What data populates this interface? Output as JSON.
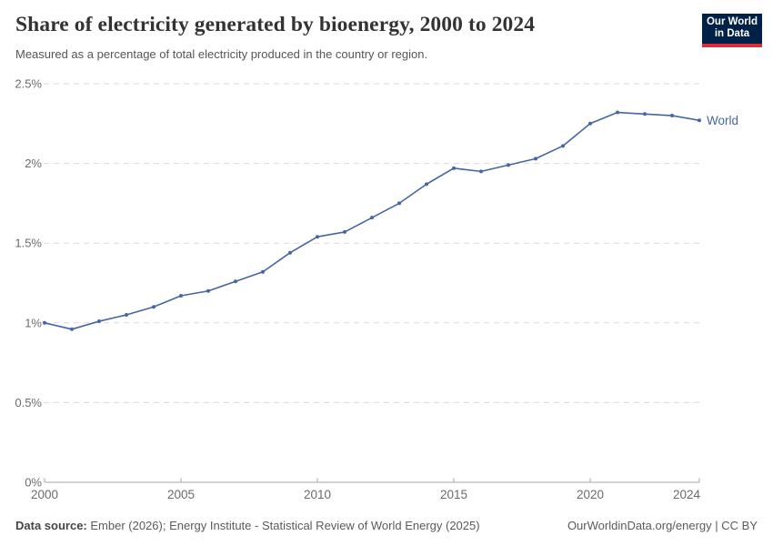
{
  "header": {
    "title": "Share of electricity generated by bioenergy, 2000 to 2024",
    "subtitle": "Measured as a percentage of total electricity produced in the country or region.",
    "logo": {
      "line1": "Our World",
      "line2": "in Data",
      "bg_color": "#002147",
      "accent_color": "#de2c37"
    }
  },
  "chart_data": {
    "type": "line",
    "title": "Share of electricity generated by bioenergy, 2000 to 2024",
    "xlabel": "",
    "ylabel": "",
    "x": [
      2000,
      2001,
      2002,
      2003,
      2004,
      2005,
      2006,
      2007,
      2008,
      2009,
      2010,
      2011,
      2012,
      2013,
      2014,
      2015,
      2016,
      2017,
      2018,
      2019,
      2020,
      2021,
      2022,
      2023,
      2024
    ],
    "series": [
      {
        "name": "World",
        "color": "#4566a5",
        "values": [
          1.0,
          0.96,
          1.01,
          1.05,
          1.1,
          1.17,
          1.2,
          1.26,
          1.32,
          1.44,
          1.54,
          1.57,
          1.66,
          1.75,
          1.87,
          1.97,
          1.95,
          1.99,
          2.03,
          2.11,
          2.25,
          2.32,
          2.31,
          2.3,
          2.27
        ]
      }
    ],
    "xlim": [
      2000,
      2024
    ],
    "ylim": [
      0,
      2.5
    ],
    "x_ticks": [
      2000,
      2005,
      2010,
      2015,
      2020,
      2024
    ],
    "y_ticks": [
      0,
      0.5,
      1,
      1.5,
      2,
      2.5
    ],
    "y_tick_labels": [
      "0%",
      "0.5%",
      "1%",
      "1.5%",
      "2%",
      "2.5%"
    ],
    "grid": "horizontal-dashed",
    "grid_color": "#dadada",
    "axis_color": "#a5a5a5",
    "tick_label_color": "#6b6b6b",
    "legend_position": "end-of-line"
  },
  "footer": {
    "datasource_label": "Data source:",
    "datasource_text": " Ember (2026); Energy Institute - Statistical Review of World Energy (2025)",
    "link_text": "OurWorldinData.org/energy | CC BY"
  }
}
